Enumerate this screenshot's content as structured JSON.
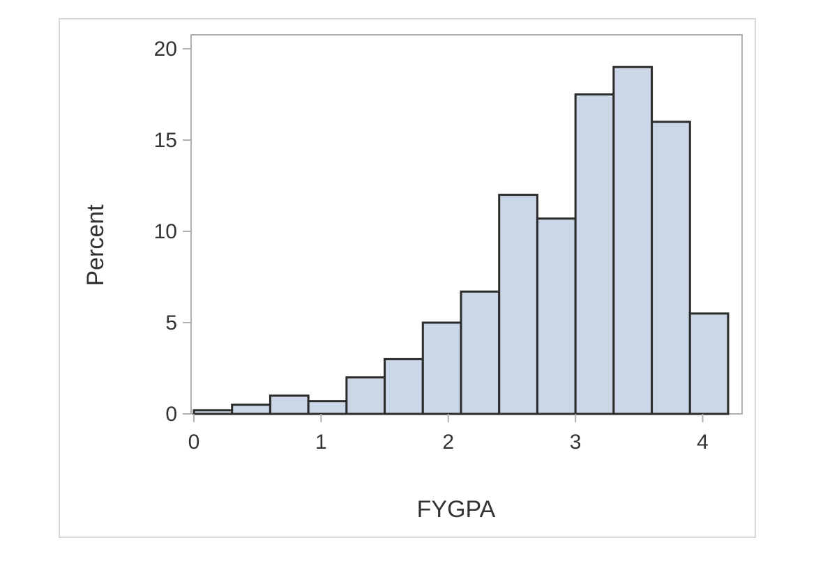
{
  "chart_data": {
    "type": "bar",
    "histogram": true,
    "xlabel": "FYGPA",
    "ylabel": "Percent",
    "xlim": [
      0,
      4.2
    ],
    "ylim": [
      0,
      20
    ],
    "xticks": [
      0,
      1,
      2,
      3,
      4
    ],
    "yticks": [
      0,
      5,
      10,
      15,
      20
    ],
    "bin_width": 0.3,
    "bins": [
      {
        "start": 0.0,
        "end": 0.3,
        "value": 0.2
      },
      {
        "start": 0.3,
        "end": 0.6,
        "value": 0.5
      },
      {
        "start": 0.6,
        "end": 0.9,
        "value": 1.0
      },
      {
        "start": 0.9,
        "end": 1.2,
        "value": 0.7
      },
      {
        "start": 1.2,
        "end": 1.5,
        "value": 2.0
      },
      {
        "start": 1.5,
        "end": 1.8,
        "value": 3.0
      },
      {
        "start": 1.8,
        "end": 2.1,
        "value": 5.0
      },
      {
        "start": 2.1,
        "end": 2.4,
        "value": 6.7
      },
      {
        "start": 2.4,
        "end": 2.7,
        "value": 12.0
      },
      {
        "start": 2.7,
        "end": 3.0,
        "value": 10.7
      },
      {
        "start": 3.0,
        "end": 3.3,
        "value": 17.5
      },
      {
        "start": 3.3,
        "end": 3.6,
        "value": 19.0
      },
      {
        "start": 3.6,
        "end": 3.9,
        "value": 16.0
      },
      {
        "start": 3.9,
        "end": 4.2,
        "value": 5.5
      }
    ],
    "grid": false,
    "legend": "none",
    "colors": {
      "bar_fill": "#cbd6e6",
      "bar_stroke": "#2b2b2b",
      "axis": "#b0b0b0",
      "text": "#333333"
    }
  }
}
